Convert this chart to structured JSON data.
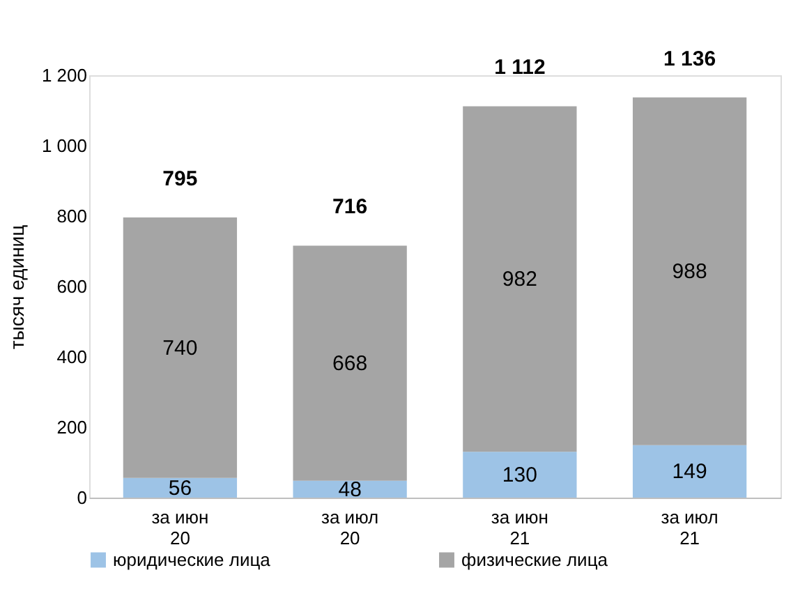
{
  "chart_data": {
    "type": "bar",
    "stacked": true,
    "ylabel": "тысяч единиц",
    "categories": [
      "за июн 20",
      "за июл 20",
      "за июн 21",
      "за июл 21"
    ],
    "series": [
      {
        "name": "юридические лица",
        "color": "#9dc3e6",
        "values": [
          56,
          48,
          130,
          149
        ]
      },
      {
        "name": "физические лица",
        "color": "#a5a5a5",
        "values": [
          740,
          668,
          982,
          988
        ]
      }
    ],
    "totals": [
      "795",
      "716",
      "1 112",
      "1 136"
    ],
    "data_labels": true,
    "ylim": [
      0,
      1200
    ],
    "yticks": [
      0,
      200,
      400,
      600,
      800,
      {
        "value": 1000,
        "label": "1 000"
      },
      {
        "value": 1200,
        "label": "1 200"
      }
    ],
    "grid": false,
    "legend": "bottom"
  }
}
